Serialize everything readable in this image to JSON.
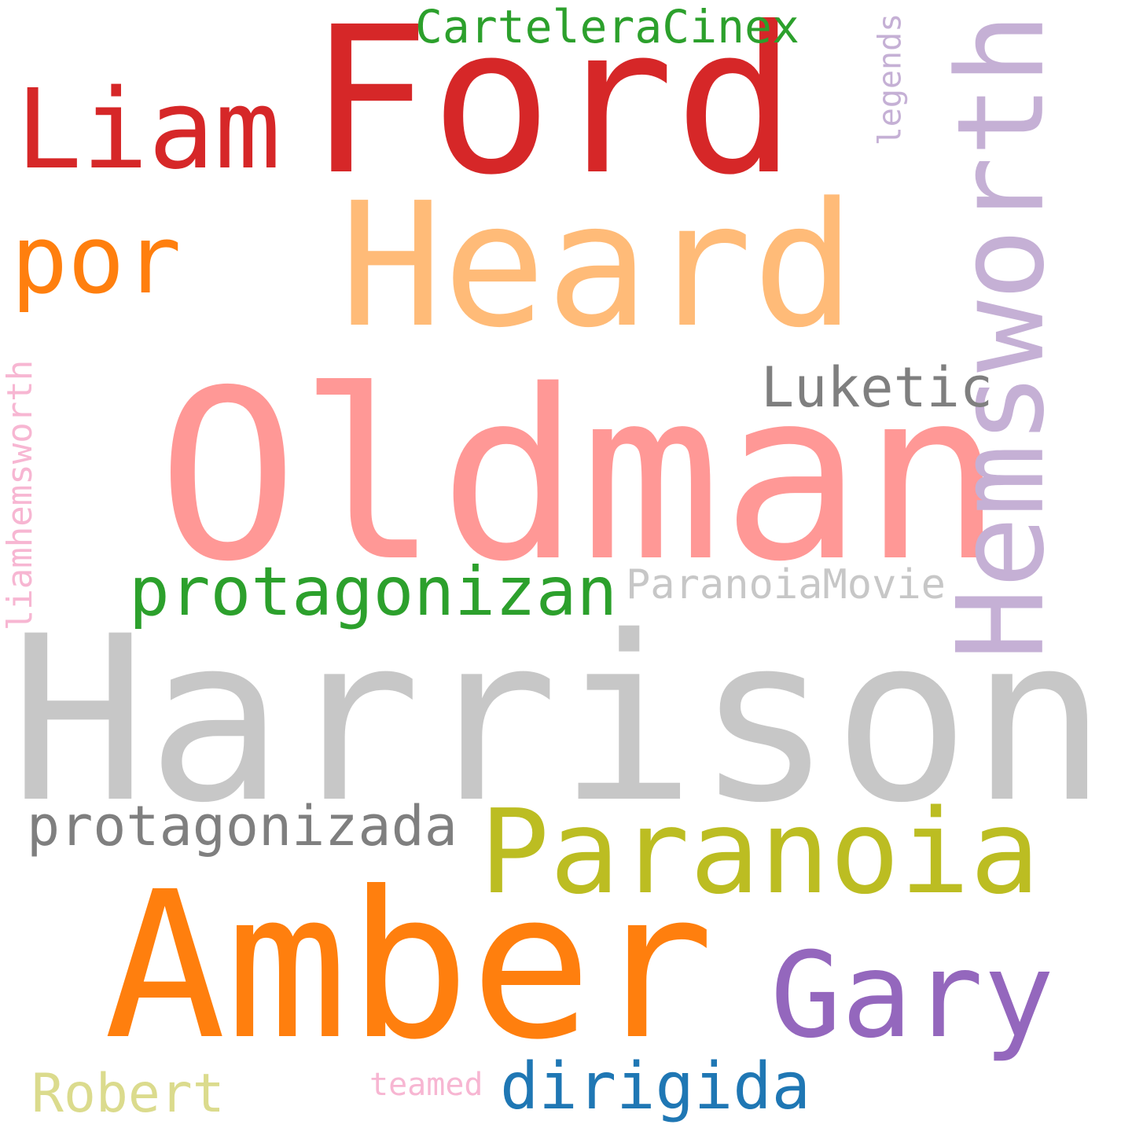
{
  "words": [
    {
      "text": "Harrison",
      "color": "#c7c7c7"
    },
    {
      "text": "Oldman",
      "color": "#ff9896"
    },
    {
      "text": "Ford",
      "color": "#d62728"
    },
    {
      "text": "Amber",
      "color": "#ff7f0e"
    },
    {
      "text": "Heard",
      "color": "#ffbb78"
    },
    {
      "text": "Hemsworth",
      "color": "#c5b0d5"
    },
    {
      "text": "Paranoia",
      "color": "#bcbd22"
    },
    {
      "text": "Gary",
      "color": "#9467bd"
    },
    {
      "text": "Liam",
      "color": "#d62728"
    },
    {
      "text": "por",
      "color": "#ff7f0e"
    },
    {
      "text": "protagonizan",
      "color": "#2ca02c"
    },
    {
      "text": "protagonizada",
      "color": "#7f7f7f"
    },
    {
      "text": "dirigida",
      "color": "#1f77b4"
    },
    {
      "text": "Luketic",
      "color": "#7f7f7f"
    },
    {
      "text": "Robert",
      "color": "#dbdb8d"
    },
    {
      "text": "ParanoiaMovie",
      "color": "#c7c7c7"
    },
    {
      "text": "CarteleraCinex",
      "color": "#2ca02c"
    },
    {
      "text": "liamhemsworth",
      "color": "#f7b6d2"
    },
    {
      "text": "legends",
      "color": "#c5b0d5"
    },
    {
      "text": "teamed",
      "color": "#f7b6d2"
    }
  ]
}
